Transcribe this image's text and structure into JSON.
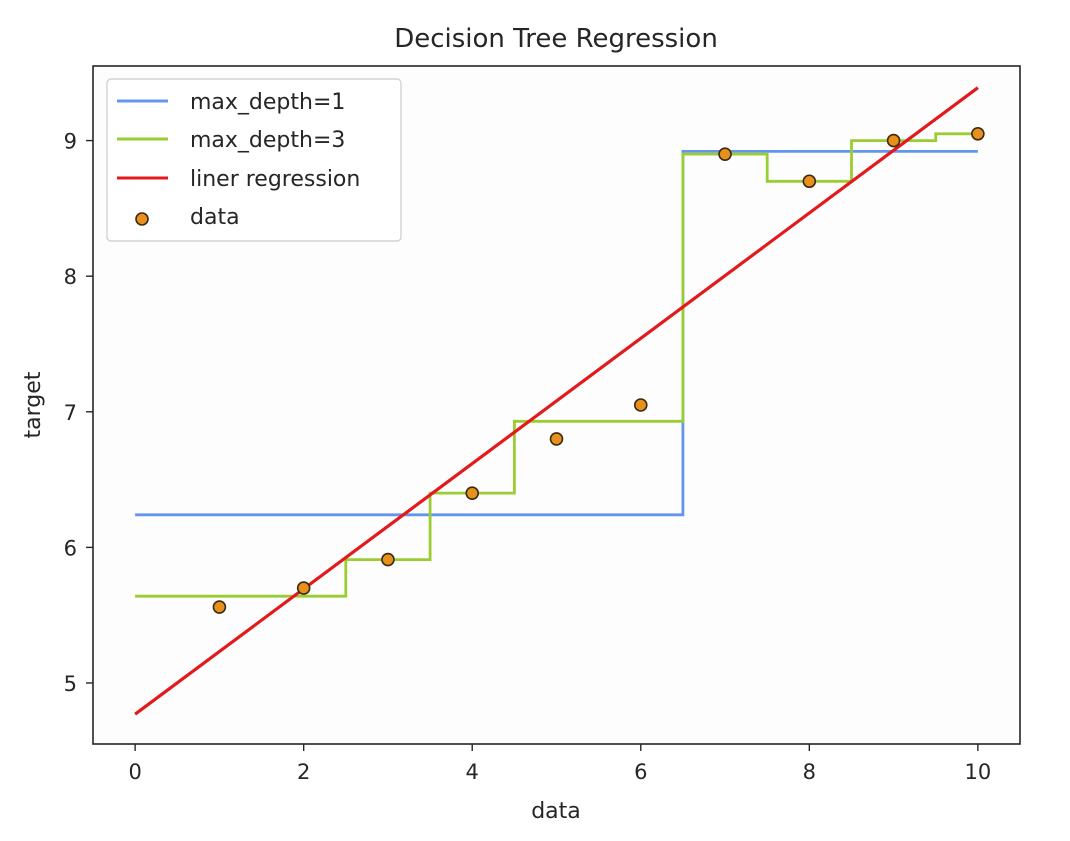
{
  "chart_data": {
    "type": "line",
    "title": "Decision Tree Regression",
    "xlabel": "data",
    "ylabel": "target",
    "xlim": [
      -0.5,
      10.5
    ],
    "ylim": [
      4.55,
      9.55
    ],
    "xticks": [
      0,
      2,
      4,
      6,
      8,
      10
    ],
    "yticks": [
      5,
      6,
      7,
      8,
      9
    ],
    "grid": false,
    "legend_position": "upper-left",
    "series": [
      {
        "name": "max_depth=1",
        "kind": "step",
        "color": "#6495ed",
        "x": [
          0,
          6.5,
          6.5,
          10
        ],
        "y": [
          6.24,
          6.24,
          8.92,
          8.92
        ]
      },
      {
        "name": "max_depth=3",
        "kind": "step",
        "color": "#9acd32",
        "x": [
          0,
          2.5,
          2.5,
          3.5,
          3.5,
          4.5,
          4.5,
          6.5,
          6.5,
          7.5,
          7.5,
          8.5,
          8.5,
          9.5,
          9.5,
          10
        ],
        "y": [
          5.64,
          5.64,
          5.91,
          5.91,
          6.4,
          6.4,
          6.93,
          6.93,
          8.9,
          8.9,
          8.7,
          8.7,
          9.0,
          9.0,
          9.05,
          9.05
        ]
      },
      {
        "name": "liner regression",
        "kind": "line",
        "color": "#e31a1c",
        "x": [
          0,
          10
        ],
        "y": [
          4.77,
          9.39
        ]
      },
      {
        "name": "data",
        "kind": "scatter",
        "color": "#e8901e",
        "x": [
          1,
          2,
          3,
          4,
          5,
          6,
          7,
          8,
          9,
          10
        ],
        "y": [
          5.56,
          5.7,
          5.91,
          6.4,
          6.8,
          7.05,
          8.9,
          8.7,
          9.0,
          9.05
        ]
      }
    ]
  }
}
